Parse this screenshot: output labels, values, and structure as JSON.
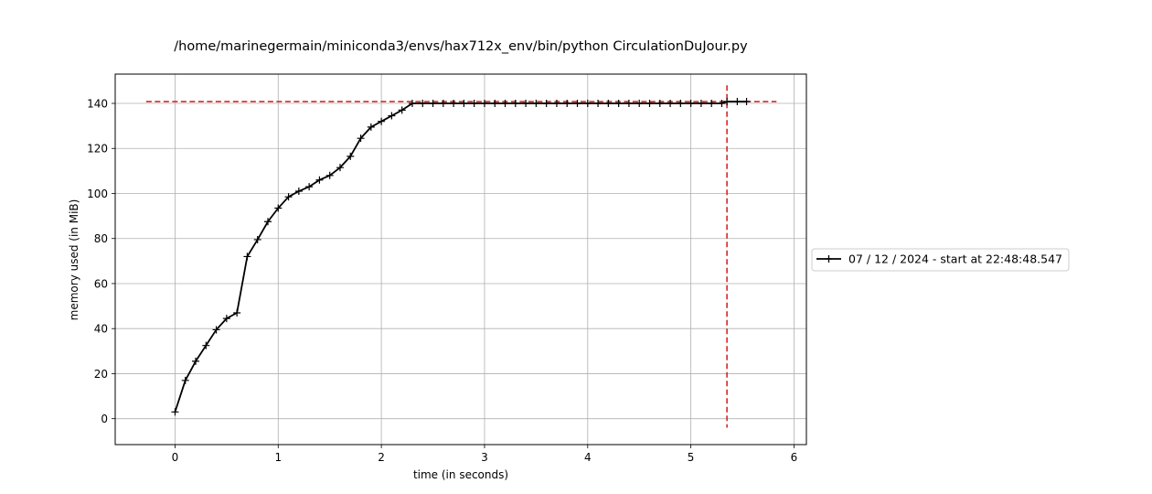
{
  "chart_data": {
    "type": "line",
    "title": "/home/marinegermain/miniconda3/envs/hax712x_env/bin/python CirculationDuJour.py",
    "xlabel": "time (in seconds)",
    "ylabel": "memory used (in MiB)",
    "xlim": [
      -0.58,
      6.12
    ],
    "ylim": [
      -11.5,
      153
    ],
    "xticks": [
      0,
      1,
      2,
      3,
      4,
      5,
      6
    ],
    "yticks": [
      0,
      20,
      40,
      60,
      80,
      100,
      120,
      140
    ],
    "grid": true,
    "legend_position": "right, outside plot",
    "series": [
      {
        "name": "07 / 12 / 2024 - start at 22:48:48.547",
        "color": "#000000",
        "marker": "+",
        "x": [
          0,
          0.1,
          0.2,
          0.3,
          0.4,
          0.5,
          0.6,
          0.7,
          0.8,
          0.9,
          1.0,
          1.1,
          1.2,
          1.3,
          1.4,
          1.5,
          1.6,
          1.7,
          1.8,
          1.9,
          2.0,
          2.1,
          2.2,
          2.3,
          2.4,
          2.5,
          2.6,
          2.7,
          2.8,
          2.9,
          3.0,
          3.1,
          3.2,
          3.3,
          3.4,
          3.5,
          3.6,
          3.7,
          3.8,
          3.9,
          4.0,
          4.1,
          4.2,
          4.3,
          4.4,
          4.5,
          4.6,
          4.7,
          4.8,
          4.9,
          5.0,
          5.1,
          5.2,
          5.3,
          5.35,
          5.45,
          5.54
        ],
        "y": [
          3,
          17,
          25.5,
          32.5,
          39.5,
          44.5,
          47,
          72,
          79.5,
          87.5,
          93.5,
          98.5,
          101,
          103,
          106,
          108,
          111.5,
          116.5,
          124.5,
          129.5,
          132,
          134.5,
          137,
          140,
          140,
          140,
          140,
          140,
          140,
          140,
          140,
          140,
          140,
          140,
          140,
          140,
          140,
          140,
          140,
          140,
          140,
          140,
          140,
          140,
          140,
          140,
          140,
          140,
          140,
          140,
          140,
          140,
          140,
          140,
          140.8,
          140.8,
          140.8
        ]
      }
    ],
    "annotations": {
      "peak_hline": {
        "y": 140.8,
        "x_from": -0.28,
        "x_to": 5.83,
        "color": "#d62728",
        "style": "dashed"
      },
      "peak_vline": {
        "x": 5.35,
        "y_from": -4,
        "y_to": 148,
        "color": "#d62728",
        "style": "dashed"
      }
    }
  }
}
